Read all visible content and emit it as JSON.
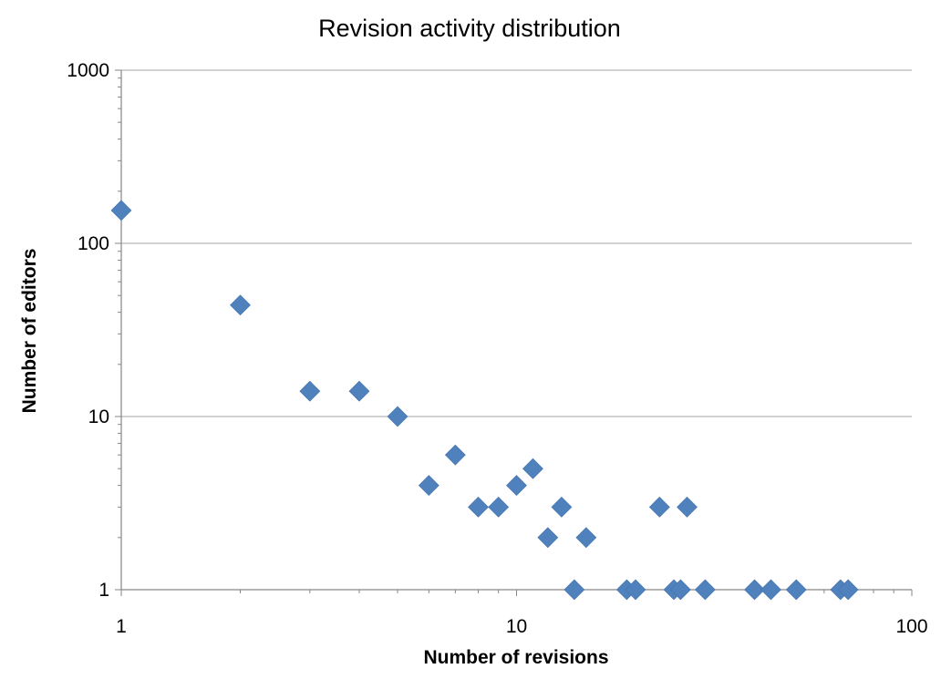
{
  "chart_data": {
    "type": "scatter",
    "title": "Revision activity distribution",
    "xlabel": "Number of revisions",
    "ylabel": "Number of editors",
    "xscale": "log",
    "yscale": "log",
    "xlim": [
      1,
      100
    ],
    "ylim": [
      1,
      1000
    ],
    "x_ticks": [
      1,
      10,
      100
    ],
    "x_tick_labels": [
      "1",
      "10",
      "100"
    ],
    "y_ticks": [
      1,
      10,
      100,
      1000
    ],
    "y_tick_labels": [
      "1",
      "10",
      "100",
      "1000"
    ],
    "grid": "horizontal major",
    "legend": "none",
    "marker": "diamond",
    "color": "#4f81bd",
    "points": [
      {
        "x": 1,
        "y": 155
      },
      {
        "x": 2,
        "y": 44
      },
      {
        "x": 3,
        "y": 14
      },
      {
        "x": 4,
        "y": 14
      },
      {
        "x": 5,
        "y": 10
      },
      {
        "x": 6,
        "y": 4
      },
      {
        "x": 7,
        "y": 6
      },
      {
        "x": 8,
        "y": 3
      },
      {
        "x": 9,
        "y": 3
      },
      {
        "x": 10,
        "y": 4
      },
      {
        "x": 11,
        "y": 5
      },
      {
        "x": 12,
        "y": 2
      },
      {
        "x": 13,
        "y": 3
      },
      {
        "x": 14,
        "y": 1
      },
      {
        "x": 15,
        "y": 2
      },
      {
        "x": 19,
        "y": 1
      },
      {
        "x": 20,
        "y": 1
      },
      {
        "x": 23,
        "y": 3
      },
      {
        "x": 25,
        "y": 1
      },
      {
        "x": 26,
        "y": 1
      },
      {
        "x": 27,
        "y": 3
      },
      {
        "x": 30,
        "y": 1
      },
      {
        "x": 40,
        "y": 1
      },
      {
        "x": 44,
        "y": 1
      },
      {
        "x": 51,
        "y": 1
      },
      {
        "x": 66,
        "y": 1
      },
      {
        "x": 69,
        "y": 1
      }
    ]
  }
}
